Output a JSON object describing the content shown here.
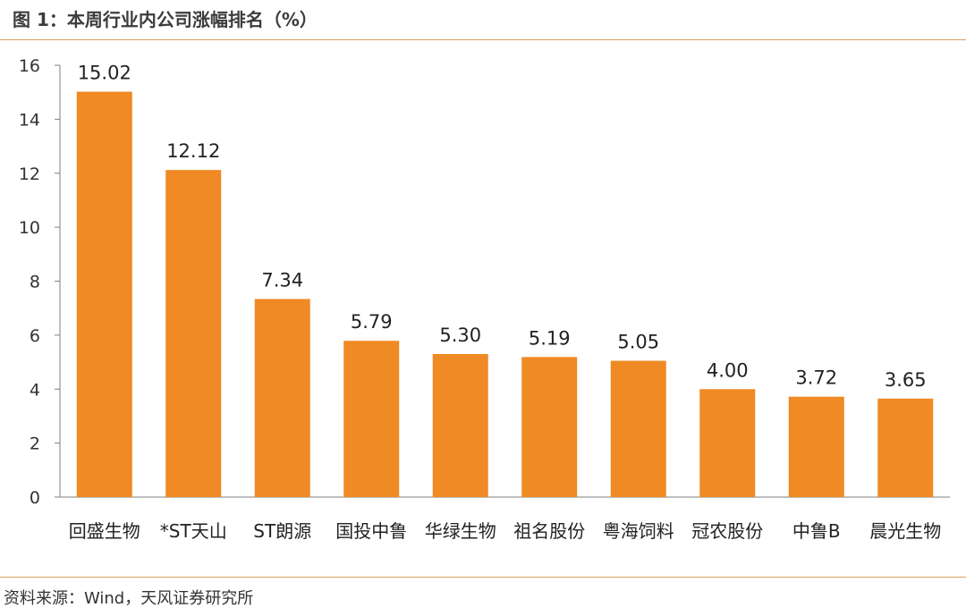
{
  "header": {
    "title": "图 1：本周行业内公司涨幅排名（%）"
  },
  "footer": {
    "source": "资料来源：Wind，天风证券研究所"
  },
  "colors": {
    "bar": "#f08a24",
    "axis": "#7f7f7f",
    "rule": "#d9a25a"
  },
  "chart_data": {
    "type": "bar",
    "title": "本周行业内公司涨幅排名（%）",
    "xlabel": "",
    "ylabel": "",
    "ylim": [
      0,
      16
    ],
    "yticks": [
      "0",
      "2",
      "4",
      "6",
      "8",
      "10",
      "12",
      "14",
      "16"
    ],
    "grid": false,
    "categories": [
      "回盛生物",
      "*ST天山",
      "ST朗源",
      "国投中鲁",
      "华绿生物",
      "祖名股份",
      "粤海饲料",
      "冠农股份",
      "中鲁B",
      "晨光生物"
    ],
    "values": [
      15.02,
      12.12,
      7.34,
      5.79,
      5.3,
      5.19,
      5.05,
      4.0,
      3.72,
      3.65
    ],
    "value_labels": [
      "15.02",
      "12.12",
      "7.34",
      "5.79",
      "5.30",
      "5.19",
      "5.05",
      "4.00",
      "3.72",
      "3.65"
    ]
  }
}
